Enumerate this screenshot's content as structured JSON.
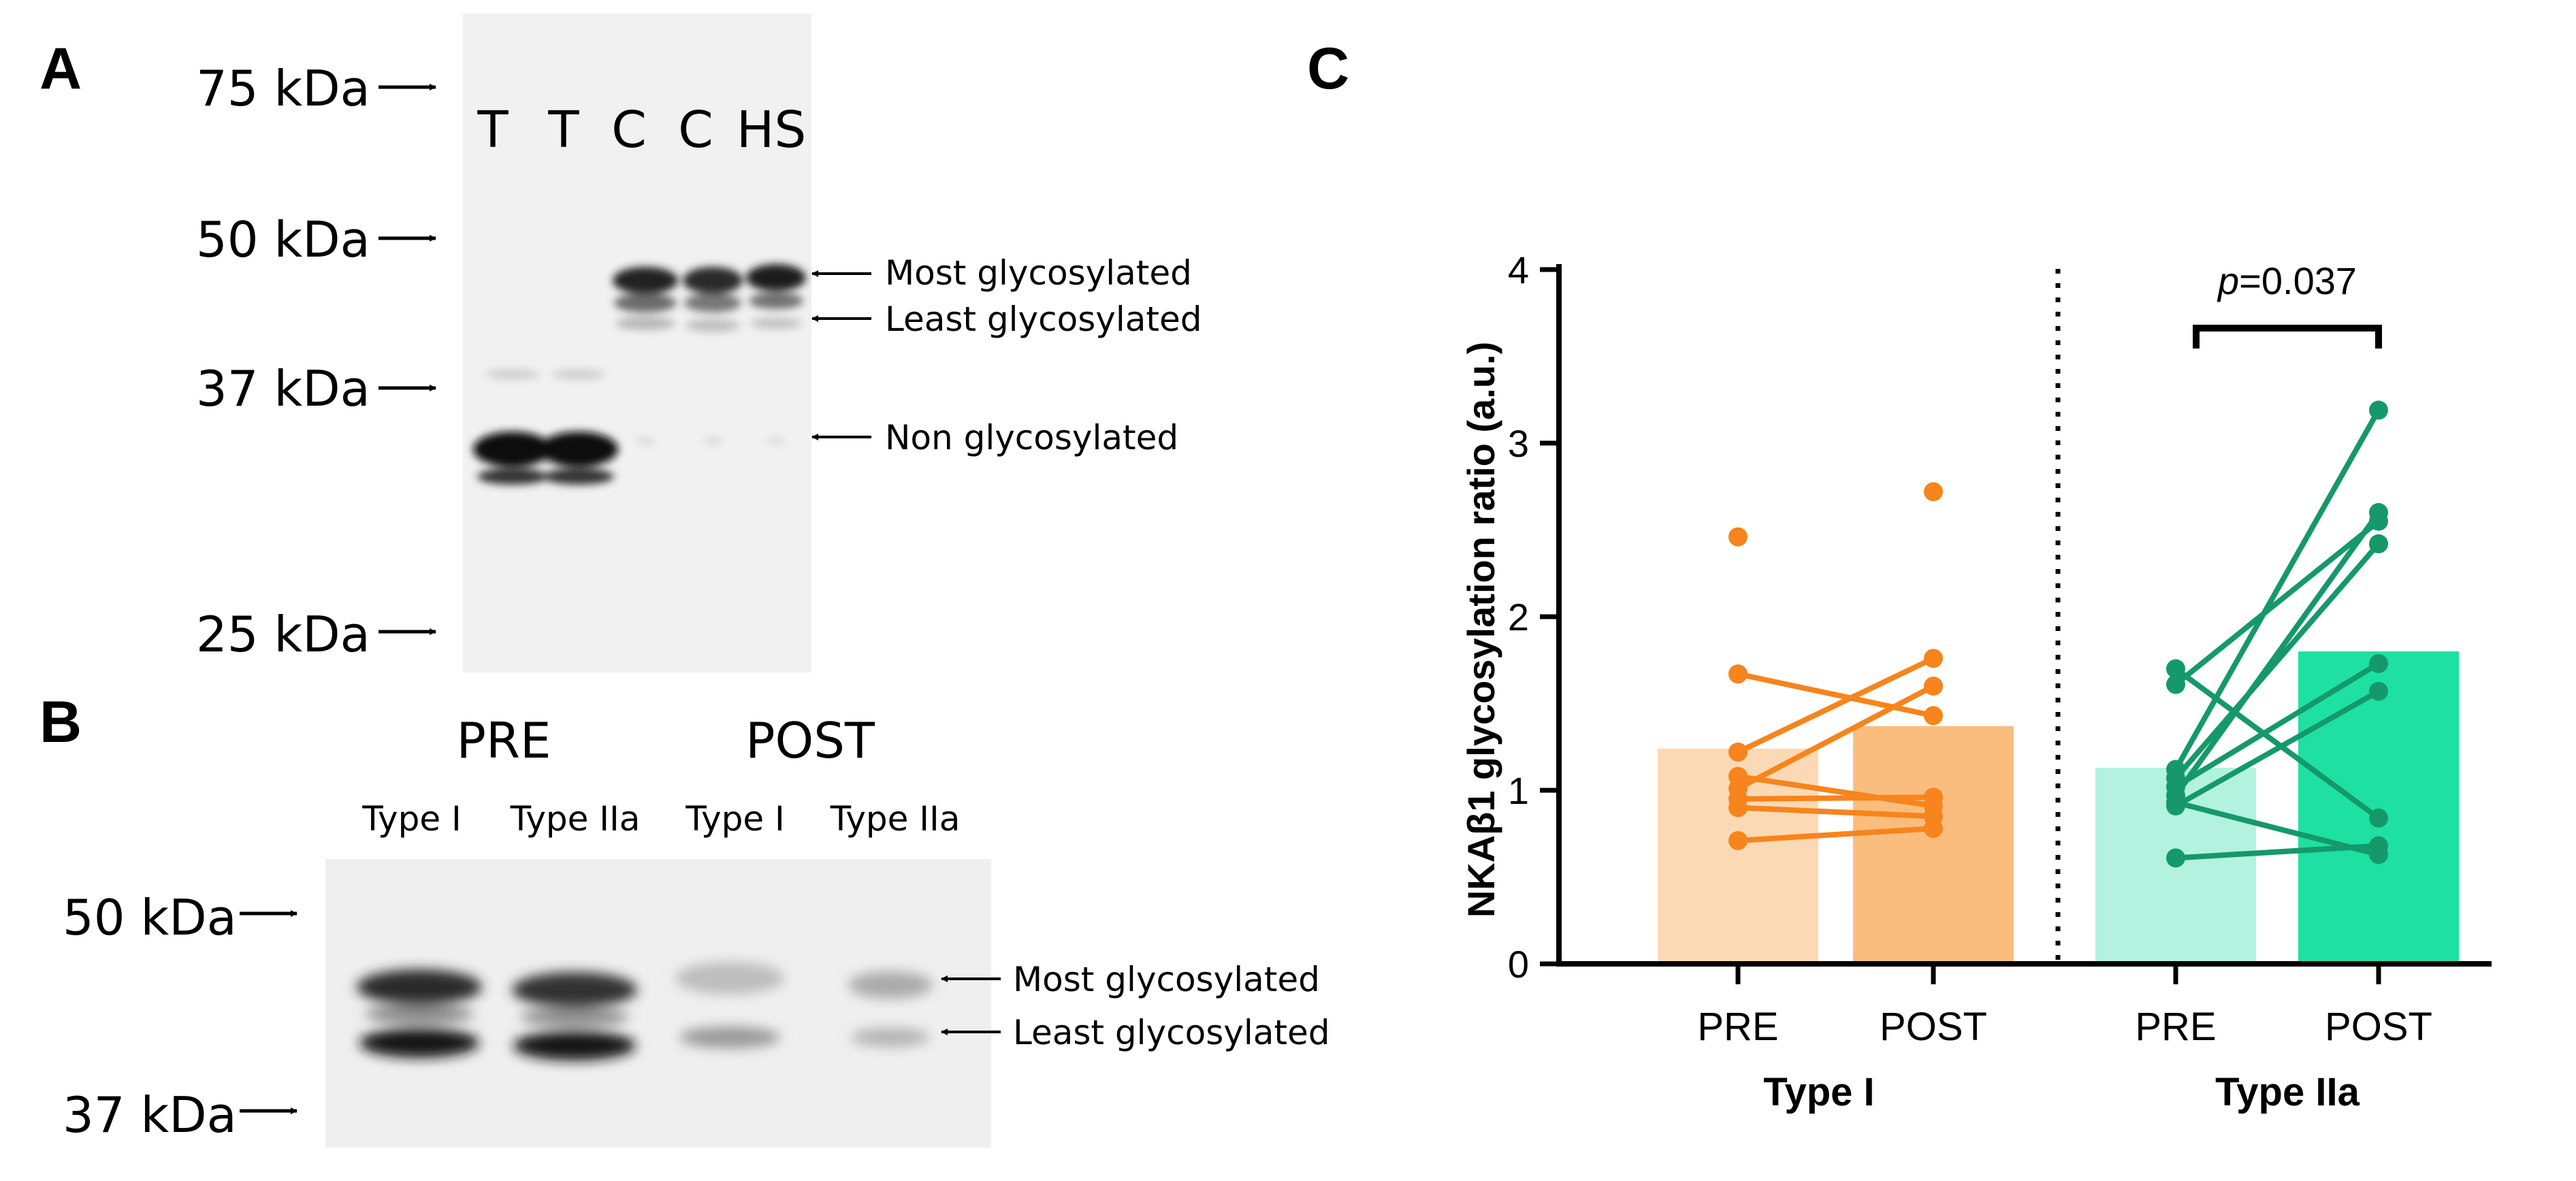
{
  "panels": {
    "a": "A",
    "b": "B",
    "c": "C"
  },
  "panel_a": {
    "markers": [
      "75 kDa",
      "50 kDa",
      "37 kDa",
      "25 kDa"
    ],
    "lanes": [
      "T",
      "T",
      "C",
      "C",
      "HS"
    ],
    "band_labels": [
      "Most glycosylated",
      "Least glycosylated",
      "Non glycosylated"
    ]
  },
  "panel_b": {
    "conditions": [
      "PRE",
      "POST"
    ],
    "fibre_types": [
      "Type I",
      "Type IIa",
      "Type I",
      "Type IIa"
    ],
    "markers": [
      "50 kDa",
      "37 kDa"
    ],
    "band_labels": [
      "Most glycosylated",
      "Least glycosylated"
    ]
  },
  "colors": {
    "type1_pre_bar": "#fcd9b5",
    "type1_post_bar": "#fbbd7e",
    "type1_line": "#f7841c",
    "type2_pre_bar": "#b3f2df",
    "type2_post_bar": "#1ee0a3",
    "type2_line": "#15996a"
  },
  "chart_data": {
    "type": "bar",
    "ylabel": "NKAβ1 glycosylation ratio (a.u.)",
    "ylim": [
      0,
      4
    ],
    "yticks": [
      "0",
      "1",
      "2",
      "3",
      "4"
    ],
    "categories": [
      "PRE",
      "POST",
      "PRE",
      "POST"
    ],
    "groups": [
      "Type I",
      "Type IIa"
    ],
    "annotation": {
      "p_italic": "p",
      "p_value": "=0.037"
    },
    "series": [
      {
        "name": "Type I",
        "means": [
          1.24,
          1.37
        ],
        "pairs": [
          [
            2.46,
            null
          ],
          [
            null,
            2.72
          ],
          [
            1.67,
            1.43
          ],
          [
            1.22,
            1.76
          ],
          [
            1.08,
            0.91
          ],
          [
            1.01,
            1.6
          ],
          [
            0.95,
            0.96
          ],
          [
            0.9,
            0.85
          ],
          [
            0.71,
            0.78
          ]
        ]
      },
      {
        "name": "Type IIa",
        "means": [
          1.13,
          1.8
        ],
        "pairs": [
          [
            1.7,
            0.84
          ],
          [
            1.61,
            2.55
          ],
          [
            1.12,
            3.19
          ],
          [
            1.07,
            2.42
          ],
          [
            1.02,
            1.73
          ],
          [
            0.97,
            2.6
          ],
          [
            0.91,
            1.57
          ],
          [
            0.93,
            0.63
          ],
          [
            0.61,
            0.68
          ]
        ]
      }
    ]
  }
}
